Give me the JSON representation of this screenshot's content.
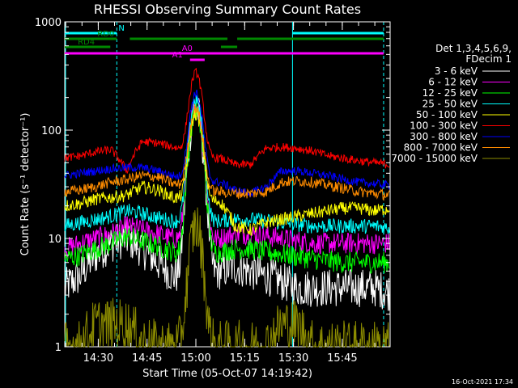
{
  "chart_data": {
    "type": "line",
    "title": "RHESSI Observing Summary Count Rates",
    "xlabel": "Start Time (05-Oct-07 14:19:42)",
    "ylabel": "Count Rate (s⁻¹ detector⁻¹)",
    "y_scale": "log",
    "ylim": [
      1,
      1000
    ],
    "xlim_minutes": [
      0,
      100
    ],
    "x_tick_labels": [
      "14:30",
      "14:45",
      "15:00",
      "15:15",
      "15:30",
      "15:45"
    ],
    "x_tick_minutes": [
      10.3,
      25.3,
      40.3,
      55.3,
      70.3,
      85.3
    ],
    "y_tick_labels": [
      "1",
      "10",
      "100",
      "1000"
    ],
    "y_tick_values": [
      1,
      10,
      100,
      1000
    ],
    "legend_header": [
      "Det 1,3,4,5,6,9,",
      "FDecim 1"
    ],
    "series": [
      {
        "name": "3 - 6 keV",
        "color": "#ffffff",
        "base": [
          3.5,
          4.5,
          7,
          9,
          10,
          8,
          6,
          4.5,
          4,
          4.5,
          5,
          5.5,
          5,
          4.5,
          4,
          3.5,
          3.5,
          3.5,
          3.5,
          3.5,
          3.5,
          3.2
        ],
        "peak": 160,
        "noise": 0.18
      },
      {
        "name": "6 - 12 keV",
        "color": "#ff00ff",
        "base": [
          8,
          9,
          10,
          11,
          13,
          12,
          11,
          10,
          9,
          9.5,
          10,
          11,
          11,
          10.5,
          10,
          9.5,
          9,
          9,
          9,
          9,
          9,
          9
        ],
        "peak": 170,
        "noise": 0.1
      },
      {
        "name": "12 - 25 keV",
        "color": "#00ff00",
        "base": [
          6.5,
          7,
          8,
          9,
          10.5,
          9.5,
          8.5,
          7.5,
          6.5,
          7,
          7.5,
          8,
          8,
          7.5,
          7.2,
          6.8,
          6.5,
          6.2,
          6,
          6,
          6,
          6
        ],
        "peak": 150,
        "noise": 0.1
      },
      {
        "name": "25 - 50 keV",
        "color": "#00ffff",
        "base": [
          13,
          14,
          15,
          16,
          18,
          17,
          15.5,
          14.5,
          13.5,
          14,
          14.5,
          15,
          15,
          14.5,
          14,
          13.5,
          13,
          13,
          13,
          13,
          13,
          12.5
        ],
        "peak": 190,
        "noise": 0.07
      },
      {
        "name": "50 - 100 keV",
        "color": "#ffff00",
        "base": [
          20,
          21,
          23,
          24,
          25,
          30,
          28,
          24,
          22,
          22,
          22,
          13,
          12,
          14,
          15,
          16,
          17,
          18,
          19,
          19,
          18,
          19
        ],
        "peak": 140,
        "noise": 0.06
      },
      {
        "name": "100 - 300 keV",
        "color": "#ff0000",
        "base": [
          55,
          58,
          63,
          66,
          42,
          78,
          76,
          70,
          62,
          55,
          55,
          48,
          48,
          68,
          70,
          68,
          64,
          58,
          55,
          52,
          50,
          48
        ],
        "peak": 340,
        "noise": 0.04
      },
      {
        "name": "300 - 800 keV",
        "color": "#0000ff",
        "base": [
          38,
          40,
          42,
          44,
          45,
          45,
          42,
          38,
          34,
          33,
          33,
          28,
          26,
          30,
          42,
          42,
          40,
          38,
          35,
          33,
          32,
          31
        ],
        "peak": 220,
        "noise": 0.04
      },
      {
        "name": "800 - 7000 keV",
        "color": "#ff8c00",
        "base": [
          27,
          28,
          30,
          33,
          35,
          38,
          37,
          32,
          29,
          27,
          27,
          26,
          26,
          27,
          33,
          34,
          33,
          31,
          29,
          27,
          26,
          25
        ],
        "peak": 160,
        "noise": 0.05
      },
      {
        "name": "7000 - 15000 keV",
        "color": "#8b8b00",
        "base": [
          1,
          1,
          1.6,
          1.6,
          1.6,
          1.1,
          1,
          1,
          1,
          1,
          1,
          1,
          1,
          1,
          1.6,
          1.6,
          1,
          1,
          1,
          1,
          1,
          1
        ],
        "peak": 13,
        "noise": 0.25
      }
    ],
    "flare_peak_minute": 40.3,
    "annotations": [
      {
        "label": "N",
        "color": "#00ffff",
        "segments": [
          [
            0,
            16
          ],
          [
            70,
            98
          ]
        ]
      },
      {
        "label": "RD0",
        "color": "#008800",
        "segments": [
          [
            0,
            16
          ],
          [
            20,
            50
          ],
          [
            53,
            98
          ]
        ]
      },
      {
        "label": "RD4",
        "color": "#008800",
        "segments": [
          [
            0,
            14
          ],
          [
            48,
            53
          ]
        ]
      },
      {
        "label": "A0",
        "color": "#ff00ff",
        "segments": [
          [
            0,
            98
          ]
        ]
      },
      {
        "label": "A1",
        "color": "#ff00ff",
        "segments": [
          [
            38.5,
            43
          ]
        ]
      }
    ],
    "vertical_lines": [
      {
        "minute": 0,
        "color": "#00ffff",
        "style": "solid"
      },
      {
        "minute": 16,
        "color": "#00ffff",
        "style": "dashed"
      },
      {
        "minute": 70,
        "color": "#00ffff",
        "style": "solid"
      },
      {
        "minute": 98,
        "color": "#00ffff",
        "style": "dashed"
      }
    ],
    "legend_placement": "right"
  },
  "footer": {
    "timestamp": "16-Oct-2021 17:34"
  }
}
